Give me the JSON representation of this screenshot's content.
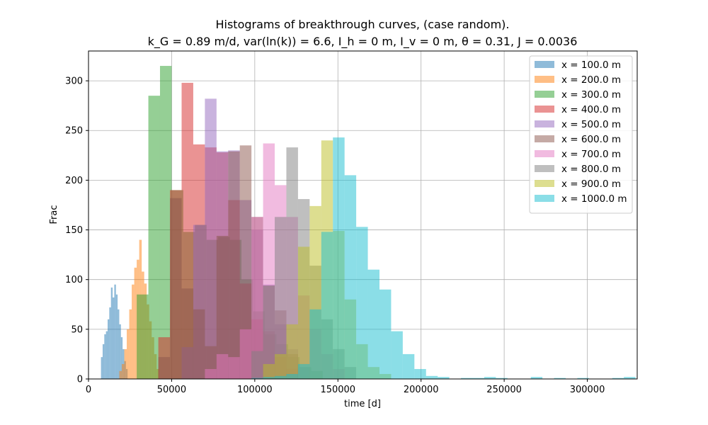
{
  "chart_data": {
    "type": "bar",
    "title": "Histograms of breakthrough curves, (case random).",
    "subtitle": "k_G = 0.89 m/d, var(ln(k)) = 6.6, I_h = 0 m, I_v = 0 m, θ = 0.31, J = 0.0036",
    "xlabel": "time [d]",
    "ylabel": "Frac",
    "xlim": [
      0,
      330000
    ],
    "ylim": [
      0,
      330
    ],
    "xticks": [
      0,
      50000,
      100000,
      150000,
      200000,
      250000,
      300000
    ],
    "yticks": [
      0,
      50,
      100,
      150,
      200,
      250,
      300
    ],
    "grid": true,
    "legend_position": "upper right",
    "series": [
      {
        "name": "x = 100.0 m",
        "color": "#1f77b4",
        "bins": [
          [
            7500,
            8500,
            22
          ],
          [
            8500,
            9500,
            35
          ],
          [
            9500,
            10500,
            45
          ],
          [
            10500,
            11500,
            48
          ],
          [
            11500,
            12500,
            60
          ],
          [
            12500,
            13500,
            72
          ],
          [
            13500,
            14500,
            92
          ],
          [
            14500,
            15500,
            82
          ],
          [
            15500,
            16500,
            95
          ],
          [
            16500,
            17500,
            85
          ],
          [
            17500,
            18500,
            70
          ],
          [
            18500,
            19500,
            55
          ],
          [
            19500,
            20500,
            42
          ],
          [
            20500,
            21500,
            30
          ],
          [
            21500,
            22500,
            18
          ],
          [
            22500,
            23500,
            10
          ]
        ]
      },
      {
        "name": "x = 200.0 m",
        "color": "#ff7f0e",
        "bins": [
          [
            18500,
            20000,
            8
          ],
          [
            20000,
            21500,
            15
          ],
          [
            21500,
            23000,
            30
          ],
          [
            23000,
            24500,
            50
          ],
          [
            24500,
            26000,
            70
          ],
          [
            26000,
            27500,
            95
          ],
          [
            27500,
            29000,
            112
          ],
          [
            29000,
            30500,
            120
          ],
          [
            30500,
            32000,
            140
          ],
          [
            32000,
            33500,
            108
          ],
          [
            33500,
            35000,
            96
          ],
          [
            35000,
            36500,
            75
          ],
          [
            36500,
            38000,
            58
          ],
          [
            38000,
            39500,
            42
          ],
          [
            39500,
            41000,
            25
          ],
          [
            41000,
            42500,
            10
          ]
        ]
      },
      {
        "name": "x = 300.0 m",
        "color": "#2ca02c",
        "bins": [
          [
            29000,
            36000,
            85
          ],
          [
            36000,
            43000,
            285
          ],
          [
            43000,
            50000,
            315
          ],
          [
            50000,
            57000,
            190
          ],
          [
            57000,
            64000,
            148
          ],
          [
            64000,
            71000,
            155
          ],
          [
            71000,
            78000,
            140
          ],
          [
            78000,
            85000,
            143
          ],
          [
            85000,
            92000,
            140
          ],
          [
            92000,
            99000,
            100
          ],
          [
            99000,
            106000,
            68
          ],
          [
            106000,
            113000,
            45
          ],
          [
            113000,
            120000,
            35
          ],
          [
            120000,
            127000,
            22
          ],
          [
            127000,
            134000,
            12
          ],
          [
            134000,
            141000,
            8
          ]
        ]
      },
      {
        "name": "x = 400.0 m",
        "color": "#d62728",
        "bins": [
          [
            42000,
            49000,
            42
          ],
          [
            49000,
            56000,
            190
          ],
          [
            56000,
            63000,
            298
          ],
          [
            63000,
            70000,
            236
          ],
          [
            70000,
            77000,
            233
          ],
          [
            77000,
            84000,
            228
          ],
          [
            84000,
            91000,
            180
          ],
          [
            91000,
            98000,
            96
          ],
          [
            98000,
            105000,
            60
          ],
          [
            105000,
            112000,
            48
          ],
          [
            112000,
            119000,
            22
          ],
          [
            119000,
            126000,
            10
          ]
        ]
      },
      {
        "name": "x = 500.0 m",
        "color": "#9467bd",
        "bins": [
          [
            56000,
            63000,
            32
          ],
          [
            63000,
            70000,
            155
          ],
          [
            70000,
            77000,
            282
          ],
          [
            77000,
            84000,
            229
          ],
          [
            84000,
            91000,
            230
          ],
          [
            91000,
            98000,
            180
          ],
          [
            98000,
            105000,
            150
          ],
          [
            105000,
            112000,
            95
          ],
          [
            112000,
            119000,
            55
          ],
          [
            119000,
            126000,
            30
          ],
          [
            126000,
            133000,
            12
          ]
        ]
      },
      {
        "name": "x = 600.0 m",
        "color": "#8c564b",
        "bins": [
          [
            42000,
            49000,
            22
          ],
          [
            49000,
            56000,
            182
          ],
          [
            56000,
            63000,
            91
          ],
          [
            63000,
            70000,
            70
          ],
          [
            70000,
            77000,
            33
          ],
          [
            77000,
            84000,
            144
          ],
          [
            84000,
            91000,
            229
          ],
          [
            91000,
            98000,
            235
          ],
          [
            98000,
            105000,
            163
          ],
          [
            105000,
            112000,
            94
          ],
          [
            112000,
            119000,
            69
          ],
          [
            119000,
            126000,
            25
          ]
        ]
      },
      {
        "name": "x = 700.0 m",
        "color": "#e377c2",
        "bins": [
          [
            70000,
            77000,
            10
          ],
          [
            77000,
            84000,
            25
          ],
          [
            84000,
            91000,
            22
          ],
          [
            91000,
            98000,
            50
          ],
          [
            98000,
            105000,
            163
          ],
          [
            105000,
            112000,
            237
          ],
          [
            112000,
            119000,
            195
          ],
          [
            119000,
            126000,
            163
          ],
          [
            126000,
            133000,
            84
          ],
          [
            133000,
            140000,
            50
          ],
          [
            140000,
            147000,
            25
          ],
          [
            147000,
            154000,
            10
          ]
        ]
      },
      {
        "name": "x = 800.0 m",
        "color": "#7f7f7f",
        "bins": [
          [
            98000,
            105000,
            28
          ],
          [
            105000,
            112000,
            94
          ],
          [
            112000,
            119000,
            163
          ],
          [
            119000,
            126000,
            233
          ],
          [
            126000,
            133000,
            181
          ],
          [
            133000,
            140000,
            114
          ],
          [
            140000,
            147000,
            60
          ],
          [
            147000,
            154000,
            30
          ],
          [
            154000,
            161000,
            12
          ]
        ]
      },
      {
        "name": "x = 900.0 m",
        "color": "#bcbd22",
        "bins": [
          [
            105000,
            112000,
            15
          ],
          [
            112000,
            119000,
            25
          ],
          [
            119000,
            126000,
            55
          ],
          [
            126000,
            133000,
            133
          ],
          [
            133000,
            140000,
            174
          ],
          [
            140000,
            147000,
            240
          ],
          [
            147000,
            154000,
            149
          ],
          [
            154000,
            161000,
            80
          ],
          [
            161000,
            168000,
            35
          ],
          [
            168000,
            175000,
            12
          ],
          [
            175000,
            182000,
            5
          ]
        ]
      },
      {
        "name": "x = 1000.0 m",
        "color": "#17becf",
        "bins": [
          [
            98000,
            105000,
            1
          ],
          [
            105000,
            112000,
            2
          ],
          [
            112000,
            119000,
            3
          ],
          [
            119000,
            126000,
            5
          ],
          [
            126000,
            133000,
            15
          ],
          [
            133000,
            140000,
            70
          ],
          [
            140000,
            147000,
            148
          ],
          [
            147000,
            154000,
            243
          ],
          [
            154000,
            161000,
            205
          ],
          [
            161000,
            168000,
            153
          ],
          [
            168000,
            175000,
            110
          ],
          [
            175000,
            182000,
            90
          ],
          [
            182000,
            189000,
            48
          ],
          [
            189000,
            196000,
            25
          ],
          [
            196000,
            203000,
            10
          ],
          [
            203000,
            210000,
            3
          ],
          [
            210000,
            217000,
            2
          ],
          [
            224000,
            231000,
            1
          ],
          [
            231000,
            238000,
            1
          ],
          [
            238000,
            245000,
            2
          ],
          [
            245000,
            252000,
            1
          ],
          [
            266000,
            273000,
            2
          ],
          [
            280000,
            287000,
            1
          ],
          [
            294000,
            301000,
            1
          ],
          [
            315000,
            322000,
            1
          ],
          [
            322000,
            329000,
            2
          ]
        ]
      }
    ]
  }
}
